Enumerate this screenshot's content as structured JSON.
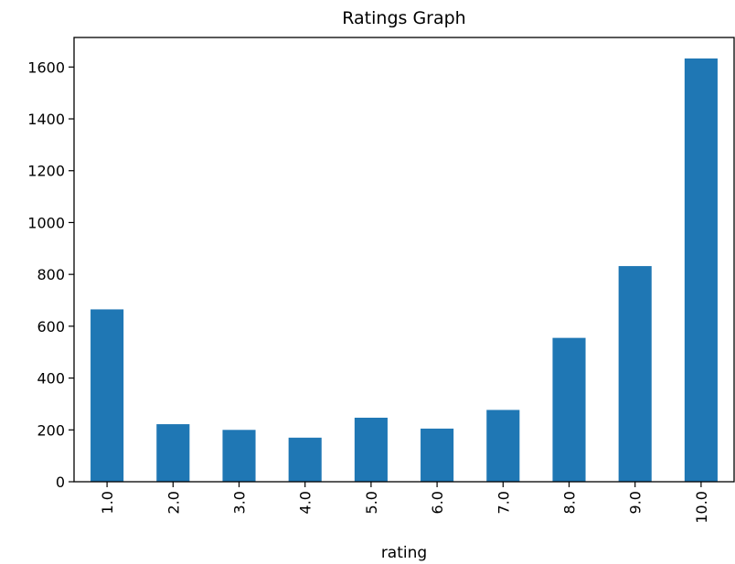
{
  "chart_data": {
    "type": "bar",
    "title": "Ratings Graph",
    "xlabel": "rating",
    "ylabel": "",
    "categories": [
      "1.0",
      "2.0",
      "3.0",
      "4.0",
      "5.0",
      "6.0",
      "7.0",
      "8.0",
      "9.0",
      "10.0"
    ],
    "values": [
      665,
      222,
      200,
      170,
      247,
      205,
      277,
      555,
      832,
      1633
    ],
    "ylim": [
      0,
      1714
    ],
    "yticks": [
      0,
      200,
      400,
      600,
      800,
      1000,
      1200,
      1400,
      1600
    ],
    "ytick_labels": [
      "0",
      "200",
      "400",
      "600",
      "800",
      "1000",
      "1200",
      "1400",
      "1600"
    ],
    "bar_color": "#1f77b4",
    "grid": false,
    "legend": "none"
  }
}
